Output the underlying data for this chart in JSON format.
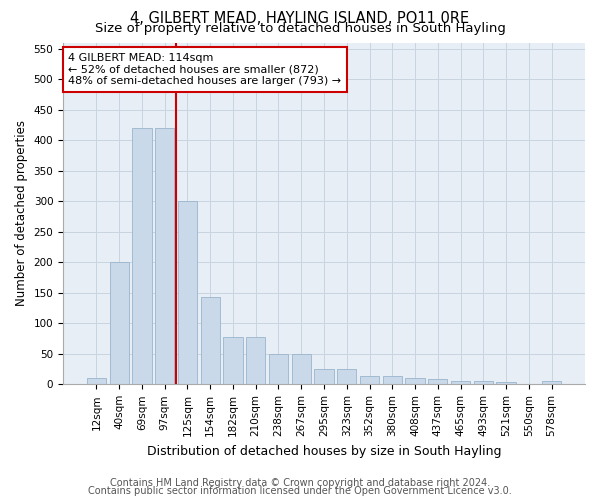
{
  "title": "4, GILBERT MEAD, HAYLING ISLAND, PO11 0RE",
  "subtitle": "Size of property relative to detached houses in South Hayling",
  "xlabel": "Distribution of detached houses by size in South Hayling",
  "ylabel": "Number of detached properties",
  "categories": [
    "12sqm",
    "40sqm",
    "69sqm",
    "97sqm",
    "125sqm",
    "154sqm",
    "182sqm",
    "210sqm",
    "238sqm",
    "267sqm",
    "295sqm",
    "323sqm",
    "352sqm",
    "380sqm",
    "408sqm",
    "437sqm",
    "465sqm",
    "493sqm",
    "521sqm",
    "550sqm",
    "578sqm"
  ],
  "values": [
    10,
    200,
    420,
    420,
    300,
    143,
    78,
    78,
    50,
    50,
    25,
    25,
    13,
    13,
    10,
    8,
    5,
    5,
    3,
    0,
    5
  ],
  "bar_color": "#c9d9ea",
  "bar_edge_color": "#9ab5cc",
  "grid_color": "#c8d4e0",
  "background_color": "#e8eef5",
  "vline_x": 3.5,
  "vline_color": "#cc0000",
  "annotation_text": "4 GILBERT MEAD: 114sqm\n← 52% of detached houses are smaller (872)\n48% of semi-detached houses are larger (793) →",
  "annotation_box_color": "#cc0000",
  "ylim": [
    0,
    560
  ],
  "yticks": [
    0,
    50,
    100,
    150,
    200,
    250,
    300,
    350,
    400,
    450,
    500,
    550
  ],
  "footer_line1": "Contains HM Land Registry data © Crown copyright and database right 2024.",
  "footer_line2": "Contains public sector information licensed under the Open Government Licence v3.0.",
  "title_fontsize": 10.5,
  "subtitle_fontsize": 9.5,
  "xlabel_fontsize": 9,
  "ylabel_fontsize": 8.5,
  "tick_fontsize": 7.5,
  "footer_fontsize": 7,
  "ann_fontsize": 8
}
